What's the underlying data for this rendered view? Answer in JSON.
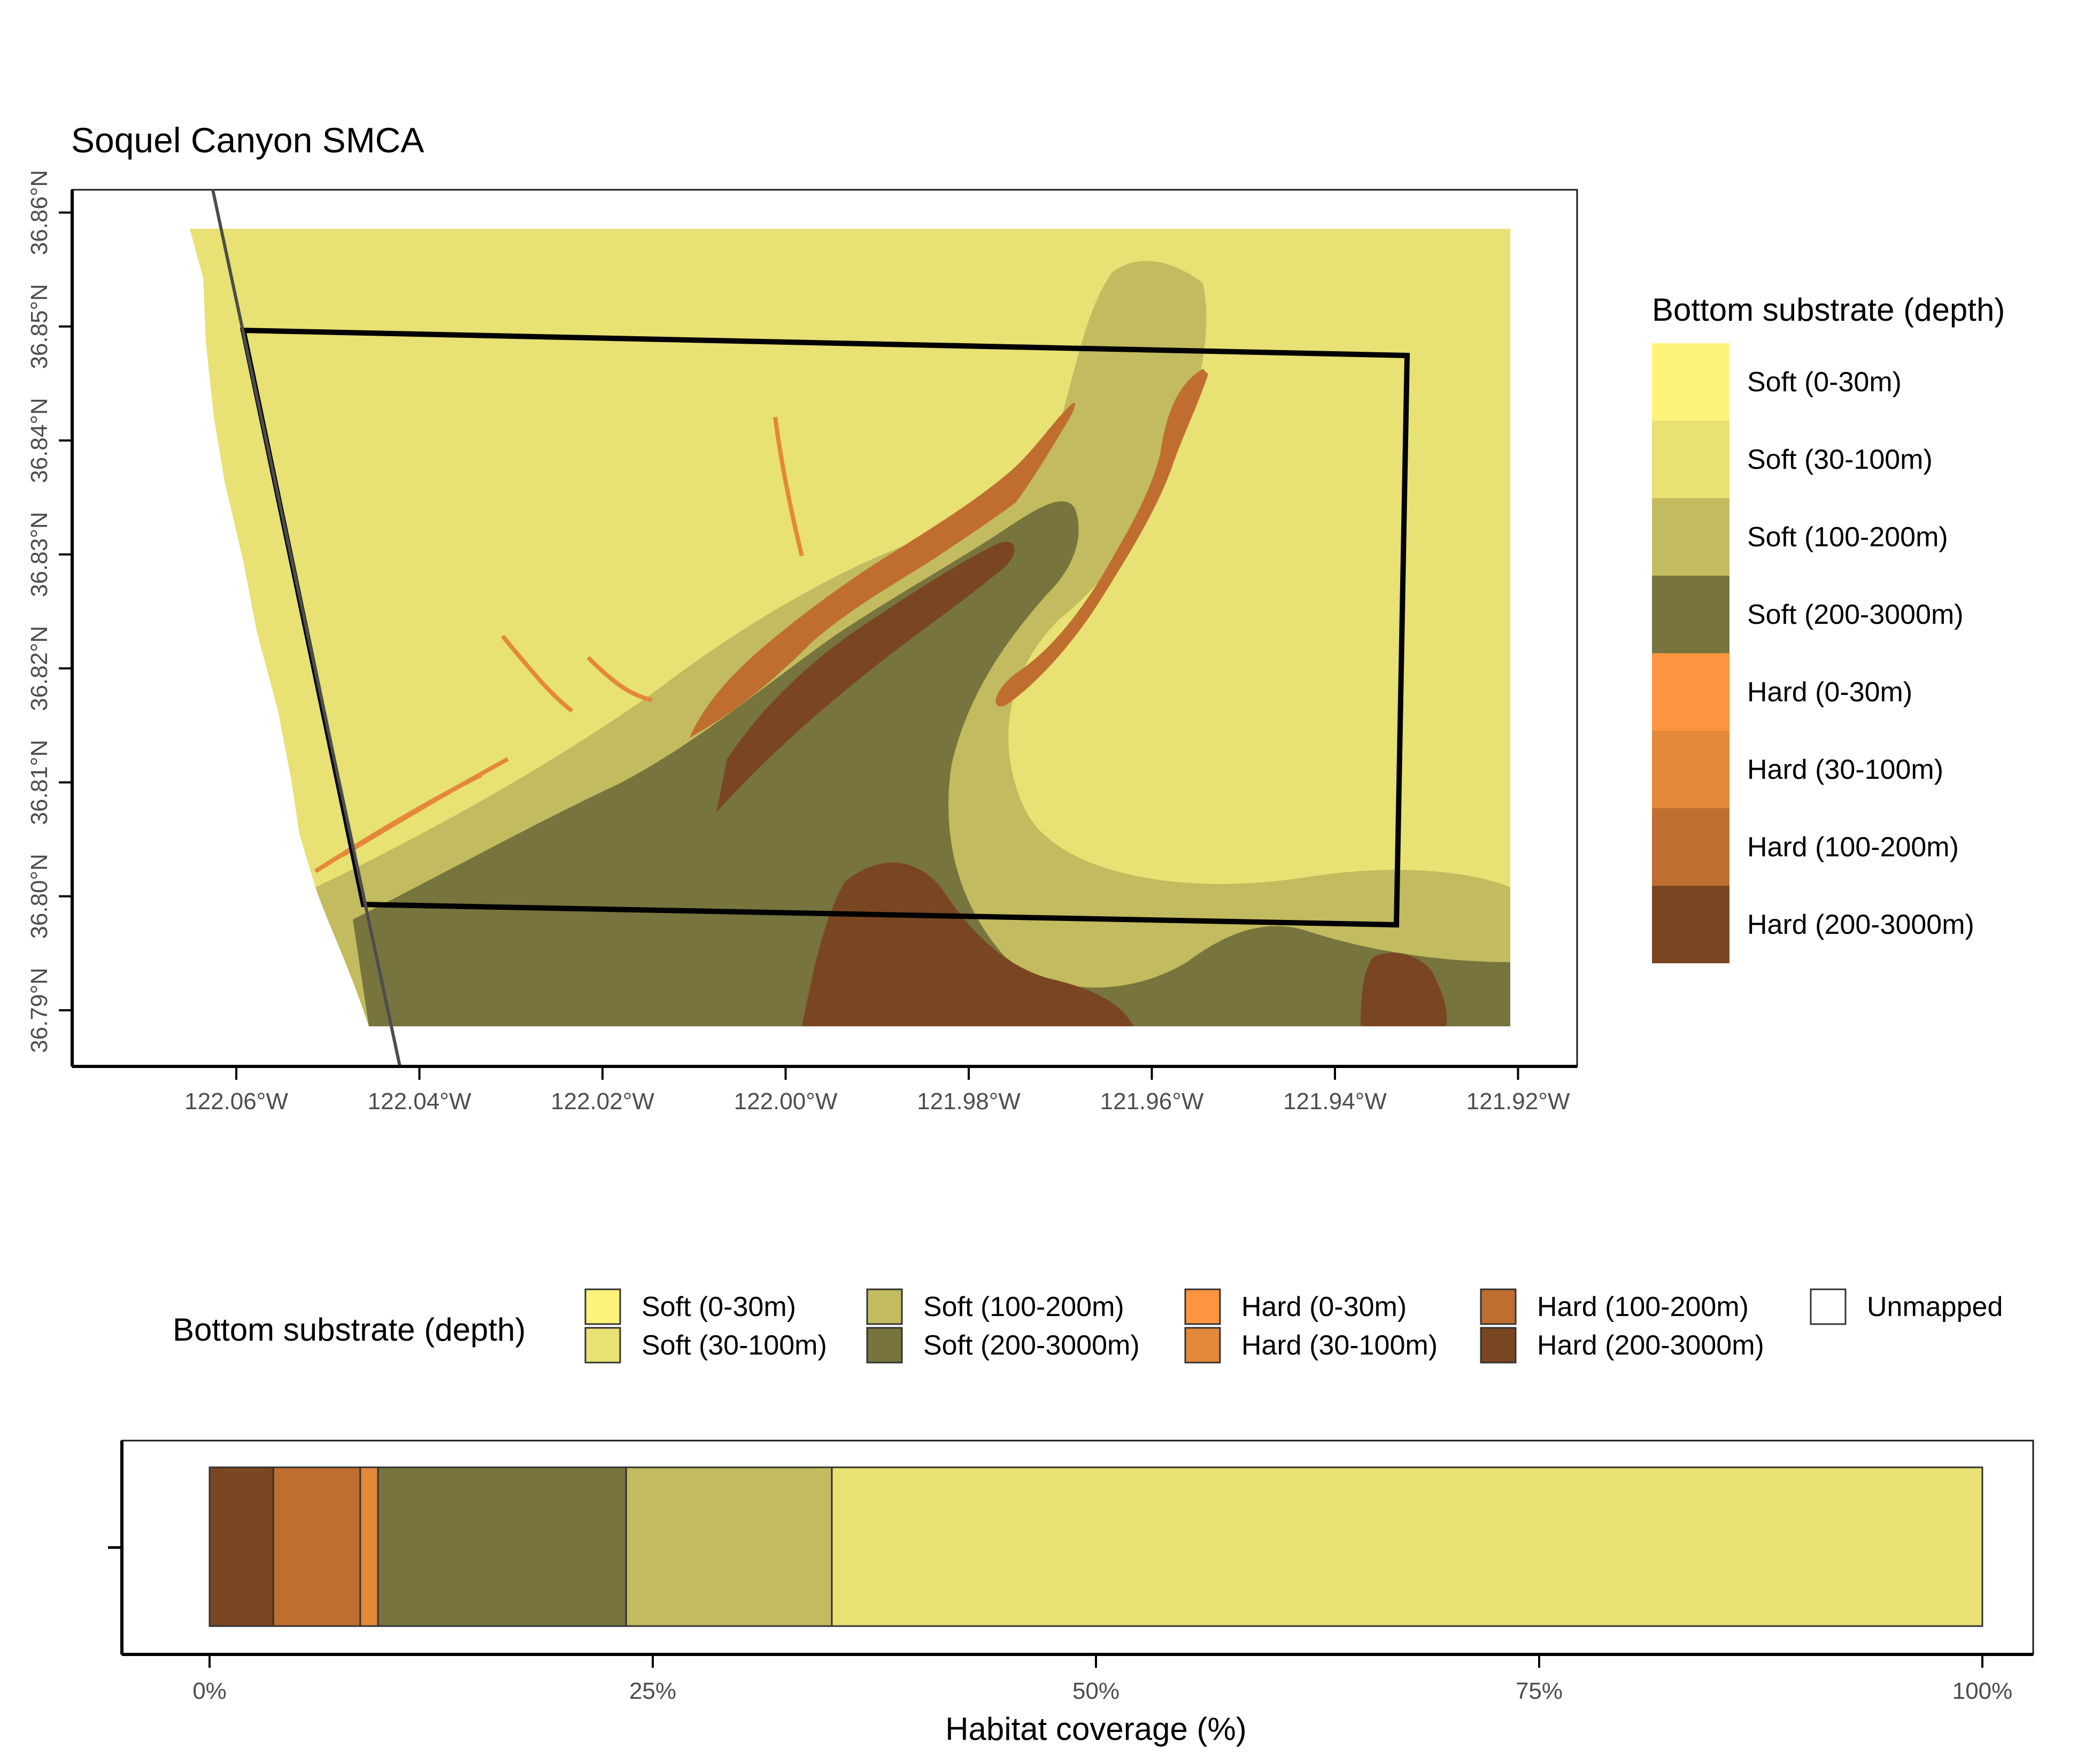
{
  "map": {
    "title": "Soquel Canyon SMCA",
    "x_ticks": [
      "122.06°W",
      "122.04°W",
      "122.02°W",
      "122.00°W",
      "121.98°W",
      "121.96°W",
      "121.94°W",
      "121.92°W"
    ],
    "y_ticks": [
      "36.79°N",
      "36.80°N",
      "36.81°N",
      "36.82°N",
      "36.83°N",
      "36.84°N",
      "36.85°N",
      "36.86°N"
    ]
  },
  "legend_right": {
    "title": "Bottom substrate (depth)",
    "items": [
      {
        "label": "Soft (0-30m)",
        "color": "#FEF37A"
      },
      {
        "label": "Soft (30-100m)",
        "color": "#E8E173"
      },
      {
        "label": "Soft (100-200m)",
        "color": "#C2BB5F"
      },
      {
        "label": "Soft (200-3000m)",
        "color": "#77743D"
      },
      {
        "label": "Hard (0-30m)",
        "color": "#FD9440"
      },
      {
        "label": "Hard (30-100m)",
        "color": "#E4883A"
      },
      {
        "label": "Hard (100-200m)",
        "color": "#C06E2F"
      },
      {
        "label": "Hard (200-3000m)",
        "color": "#7A4621"
      }
    ]
  },
  "legend_bottom": {
    "title": "Bottom substrate (depth)",
    "items": [
      {
        "label": "Soft (0-30m)",
        "color": "#FEF37A"
      },
      {
        "label": "Soft (30-100m)",
        "color": "#E8E173"
      },
      {
        "label": "Soft (100-200m)",
        "color": "#C2BB5F"
      },
      {
        "label": "Soft (200-3000m)",
        "color": "#77743D"
      },
      {
        "label": "Hard (0-30m)",
        "color": "#FD9440"
      },
      {
        "label": "Hard (30-100m)",
        "color": "#E4883A"
      },
      {
        "label": "Hard (100-200m)",
        "color": "#C06E2F"
      },
      {
        "label": "Hard (200-3000m)",
        "color": "#7A4621"
      },
      {
        "label": "Unmapped",
        "color": "#FFFFFF"
      }
    ]
  },
  "chart_data": {
    "type": "bar",
    "orientation": "horizontal",
    "stacked": true,
    "xlabel": "Habitat coverage (%)",
    "x_ticks": [
      "0%",
      "25%",
      "50%",
      "75%",
      "100%"
    ],
    "xlim": [
      0,
      100
    ],
    "series": [
      {
        "name": "Hard (200-3000m)",
        "value": 3.6,
        "color": "#7A4621"
      },
      {
        "name": "Hard (100-200m)",
        "value": 4.9,
        "color": "#C06E2F"
      },
      {
        "name": "Hard (30-100m)",
        "value": 1.0,
        "color": "#E4883A"
      },
      {
        "name": "Soft (200-3000m)",
        "value": 14.0,
        "color": "#77743D"
      },
      {
        "name": "Soft (100-200m)",
        "value": 11.6,
        "color": "#C2BB5F"
      },
      {
        "name": "Soft (30-100m)",
        "value": 64.9,
        "color": "#E8E173"
      }
    ]
  }
}
